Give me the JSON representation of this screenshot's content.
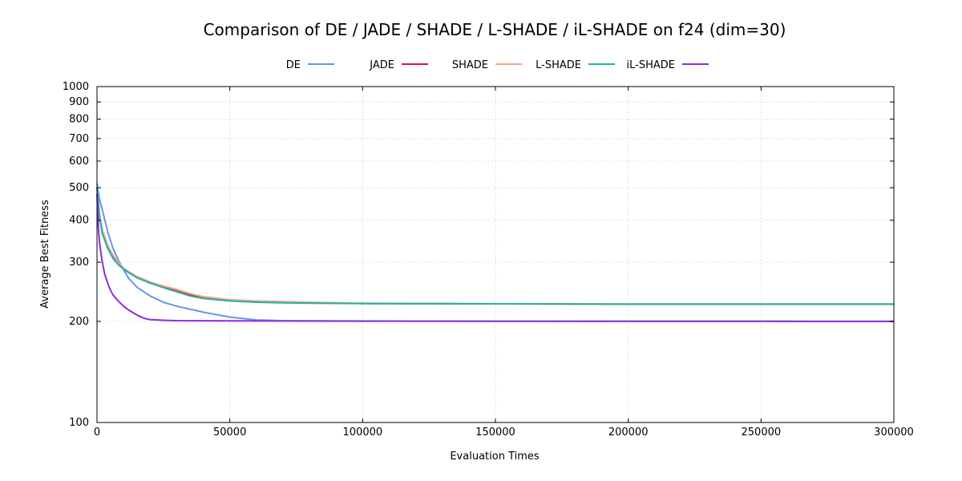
{
  "chart_data": {
    "type": "line",
    "title": "Comparison of DE / JADE / SHADE / L-SHADE / iL-SHADE on f24 (dim=30)",
    "xlabel": "Evaluation Times",
    "ylabel": "Average Best Fitness",
    "xlim": [
      0,
      300000
    ],
    "ylim": [
      100,
      1000
    ],
    "yscale": "log",
    "grid": true,
    "legend": "top-center",
    "xticks": [
      0,
      50000,
      100000,
      150000,
      200000,
      250000,
      300000
    ],
    "xtick_labels": [
      "0",
      "50000",
      "100000",
      "150000",
      "200000",
      "250000",
      "300000"
    ],
    "yticks": [
      100,
      200,
      300,
      400,
      500,
      600,
      700,
      800,
      900,
      1000
    ],
    "ytick_labels": [
      "100",
      "200",
      "300",
      "400",
      "500",
      "600",
      "700",
      "800",
      "900",
      "1000"
    ],
    "series": [
      {
        "name": "DE",
        "color": "#6495ed",
        "x": [
          0,
          1000,
          2000,
          4000,
          6000,
          8000,
          10000,
          12000,
          15000,
          20000,
          25000,
          30000,
          40000,
          50000,
          60000,
          70000,
          100000,
          150000,
          200000,
          250000,
          300000
        ],
        "y": [
          515,
          460,
          430,
          370,
          330,
          305,
          285,
          268,
          253,
          238,
          228,
          222,
          213,
          206,
          202,
          201,
          200.5,
          200.3,
          200.2,
          200.1,
          200
        ]
      },
      {
        "name": "JADE",
        "color": "#dc143c",
        "x": [
          0,
          1000,
          2000,
          4000,
          6000,
          8000,
          10000,
          12000,
          15000,
          20000,
          25000,
          30000,
          35000,
          40000,
          50000,
          60000,
          70000,
          80000,
          100000,
          150000,
          200000,
          250000,
          300000
        ],
        "y": [
          500,
          410,
          370,
          335,
          312,
          298,
          287,
          280,
          270,
          260,
          253,
          246,
          240,
          236,
          231,
          229,
          228,
          227,
          226,
          225.5,
          225,
          225,
          225
        ]
      },
      {
        "name": "SHADE",
        "color": "#f4a582",
        "x": [
          0,
          1000,
          2000,
          4000,
          6000,
          8000,
          10000,
          12000,
          15000,
          20000,
          25000,
          30000,
          35000,
          40000,
          50000,
          60000,
          70000,
          80000,
          100000,
          150000,
          200000,
          250000,
          300000
        ],
        "y": [
          500,
          415,
          375,
          338,
          315,
          300,
          288,
          281,
          272,
          262,
          255,
          249,
          242,
          237,
          232,
          230,
          229,
          228,
          226.5,
          225.5,
          225,
          225,
          225
        ]
      },
      {
        "name": "L-SHADE",
        "color": "#20b2aa",
        "x": [
          0,
          1000,
          2000,
          4000,
          6000,
          8000,
          10000,
          12000,
          15000,
          20000,
          25000,
          30000,
          35000,
          40000,
          50000,
          60000,
          70000,
          80000,
          100000,
          150000,
          200000,
          250000,
          300000
        ],
        "y": [
          500,
          405,
          365,
          330,
          308,
          295,
          286,
          279,
          270,
          260,
          252,
          245,
          238,
          234,
          230,
          228,
          227,
          226.5,
          226,
          225.5,
          225,
          225,
          225
        ]
      },
      {
        "name": "iL-SHADE",
        "color": "#8a2be2",
        "x": [
          0,
          500,
          1000,
          2000,
          3000,
          4000,
          5000,
          6000,
          8000,
          10000,
          12000,
          15000,
          18000,
          20000,
          25000,
          30000,
          50000,
          100000,
          150000,
          200000,
          250000,
          300000
        ],
        "y": [
          480,
          380,
          340,
          300,
          275,
          260,
          248,
          240,
          230,
          222,
          216,
          209,
          204,
          202.5,
          201.5,
          201,
          200.6,
          200.3,
          200.2,
          200.1,
          200.1,
          200
        ]
      }
    ]
  }
}
